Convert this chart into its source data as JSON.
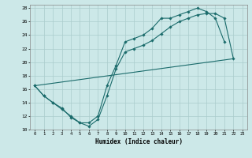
{
  "xlabel": "Humidex (Indice chaleur)",
  "background_color": "#cce8e8",
  "grid_color": "#aacccc",
  "line_color": "#1a6b6b",
  "xlim": [
    -0.5,
    23.5
  ],
  "ylim": [
    10,
    28.5
  ],
  "xticks": [
    0,
    1,
    2,
    3,
    4,
    5,
    6,
    7,
    8,
    9,
    10,
    11,
    12,
    13,
    14,
    15,
    16,
    17,
    18,
    19,
    20,
    21,
    22,
    23
  ],
  "yticks": [
    10,
    12,
    14,
    16,
    18,
    20,
    22,
    24,
    26,
    28
  ],
  "line1_x": [
    0,
    1,
    2,
    3,
    4,
    5,
    6,
    7,
    8,
    9,
    10,
    11,
    12,
    13,
    14,
    15,
    16,
    17,
    18,
    19,
    20,
    21
  ],
  "line1_y": [
    16.5,
    15.0,
    14.0,
    13.0,
    12.0,
    11.0,
    11.0,
    12.0,
    16.5,
    19.5,
    23.0,
    23.5,
    24.0,
    25.0,
    26.5,
    26.5,
    27.0,
    27.5,
    28.0,
    27.5,
    26.5,
    23.0
  ],
  "line2_x": [
    0,
    1,
    2,
    3,
    4,
    5,
    6,
    7,
    8,
    9,
    10,
    11,
    12,
    13,
    14,
    15,
    16,
    17,
    18,
    19,
    20,
    21,
    22
  ],
  "line2_y": [
    16.5,
    15.0,
    14.0,
    13.2,
    11.8,
    11.0,
    10.5,
    11.5,
    15.0,
    19.0,
    21.5,
    22.0,
    22.5,
    23.2,
    24.2,
    25.2,
    26.0,
    26.5,
    27.0,
    27.2,
    27.2,
    26.5,
    20.5
  ],
  "line3_x": [
    0,
    22
  ],
  "line3_y": [
    16.5,
    20.5
  ]
}
